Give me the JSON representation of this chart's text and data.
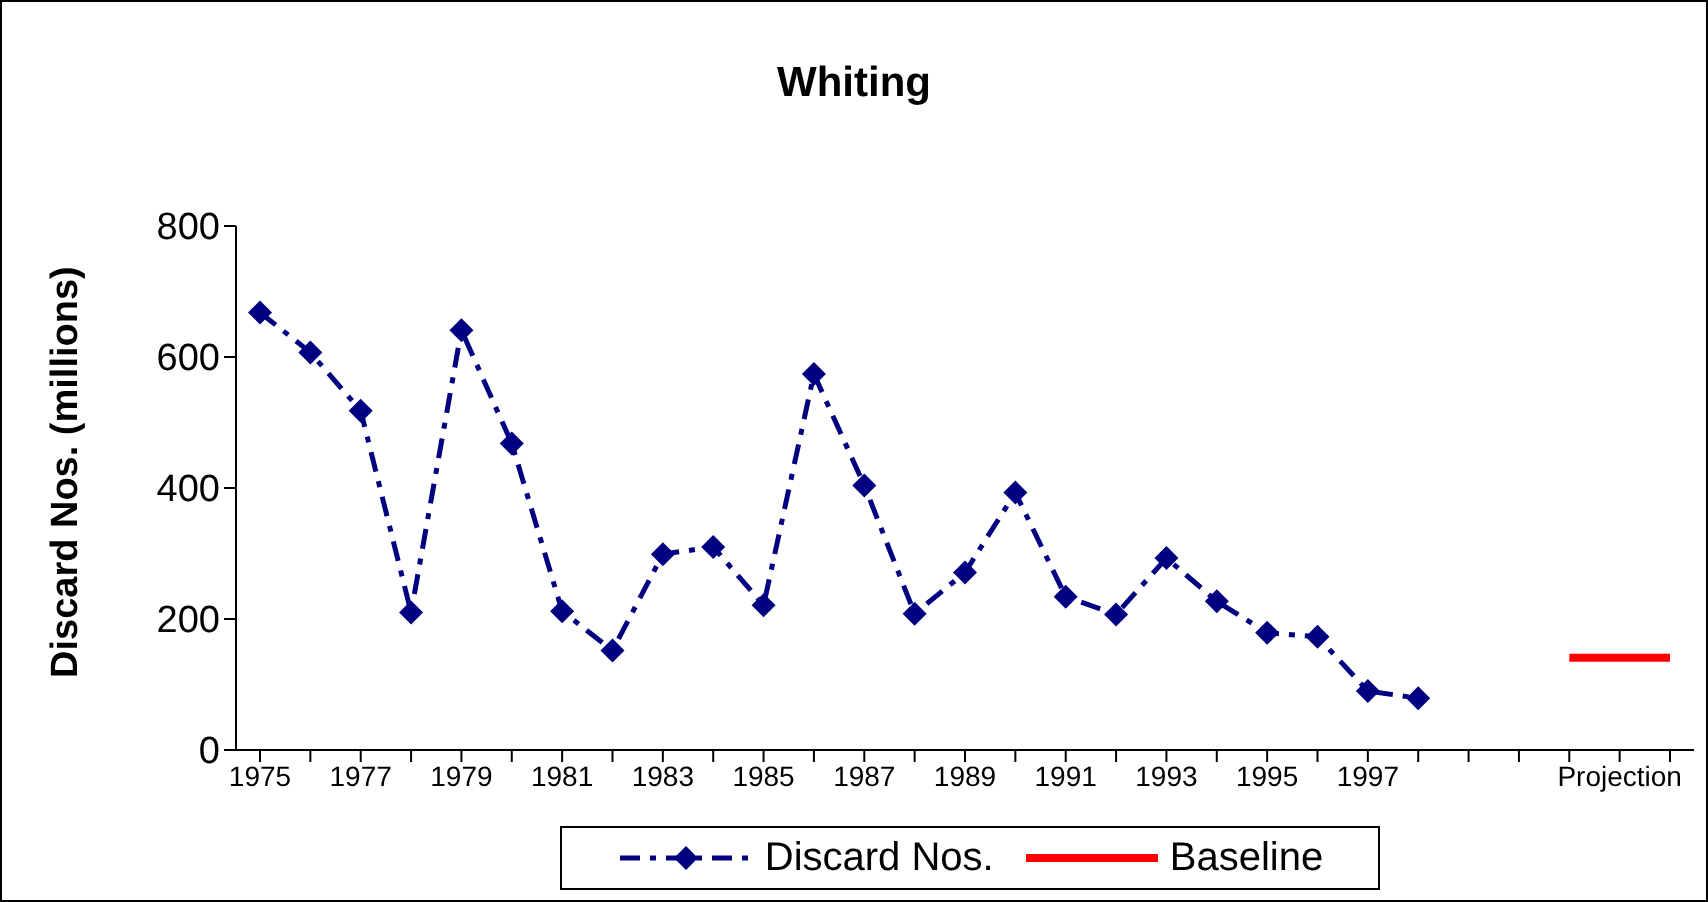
{
  "chart_data": {
    "type": "line",
    "title": "Whiting",
    "ylabel": "Discard Nos. (millions)",
    "categories": [
      "1975",
      null,
      "1977",
      null,
      "1979",
      null,
      "1981",
      null,
      "1983",
      null,
      "1985",
      null,
      "1987",
      null,
      "1989",
      null,
      "1991",
      null,
      "1993",
      null,
      "1995",
      null,
      "1997",
      null,
      null,
      null,
      null,
      "Projection",
      null
    ],
    "ylim": [
      0,
      800
    ],
    "yticks": [
      0,
      200,
      400,
      600,
      800
    ],
    "grid": false,
    "legend": "bottom",
    "series": [
      {
        "name": "Discard Nos.",
        "color": "#000080",
        "marker": "diamond",
        "line_style": "dashed",
        "values": [
          668,
          607,
          518,
          210,
          641,
          468,
          212,
          152,
          299,
          310,
          221,
          574,
          404,
          208,
          271,
          393,
          234,
          207,
          293,
          227,
          179,
          173,
          90,
          79,
          null,
          null,
          null,
          null,
          null
        ]
      },
      {
        "name": "Baseline",
        "color": "#ff0000",
        "marker": "none",
        "line_style": "solid",
        "values": [
          null,
          null,
          null,
          null,
          null,
          null,
          null,
          null,
          null,
          null,
          null,
          null,
          null,
          null,
          null,
          null,
          null,
          null,
          null,
          null,
          null,
          null,
          null,
          null,
          null,
          null,
          141,
          141,
          141
        ]
      }
    ]
  }
}
